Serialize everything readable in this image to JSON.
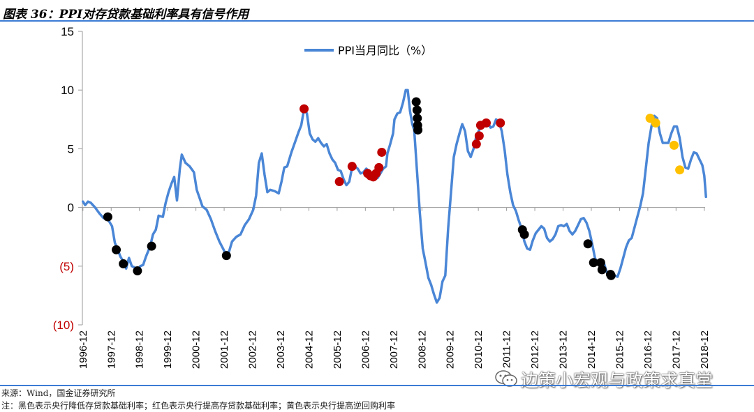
{
  "header": {
    "title": "图表 36：PPI对存贷款基础利率具有信号作用"
  },
  "footer": {
    "source": "来源：Wind，国金证券研究所",
    "note": "注：黑色表示央行降低存贷款基础利率；红色表示央行提高存贷款基础利率；黄色表示央行提高逆回购利率"
  },
  "watermark": {
    "text": "边策小宏观与政策求真堂"
  },
  "colors": {
    "line": "#4a86d6",
    "black_marker": "#000000",
    "red_marker": "#c00000",
    "yellow_marker": "#ffc000",
    "negative_label": "#c00000",
    "rule": "#3b7bd4"
  },
  "chart_data": {
    "type": "line",
    "title": "",
    "xlabel": "",
    "ylabel": "",
    "ylim": [
      -10,
      15
    ],
    "yticks": [
      15,
      10,
      5,
      0,
      -5,
      -10
    ],
    "ytick_labels": [
      "15",
      "10",
      "5",
      "0",
      "(5)",
      "(10)"
    ],
    "xlim": [
      1996.9,
      2018.95
    ],
    "xticks": [
      "1996-12",
      "1997-12",
      "1998-12",
      "1999-12",
      "2000-12",
      "2001-12",
      "2002-12",
      "2003-12",
      "2004-12",
      "2005-12",
      "2006-12",
      "2007-12",
      "2008-12",
      "2009-12",
      "2010-12",
      "2011-12",
      "2012-12",
      "2013-12",
      "2014-12",
      "2015-12",
      "2016-12",
      "2017-12",
      "2018-12"
    ],
    "legend": {
      "position": "top-center",
      "label": "PPI当月同比（%）"
    },
    "grid": false,
    "series": [
      {
        "name": "PPI当月同比（%）",
        "points": [
          [
            1996.92,
            0.5
          ],
          [
            1997.0,
            0.2
          ],
          [
            1997.1,
            0.5
          ],
          [
            1997.2,
            0.4
          ],
          [
            1997.35,
            0
          ],
          [
            1997.5,
            -0.5
          ],
          [
            1997.65,
            -0.9
          ],
          [
            1997.8,
            -1.0
          ],
          [
            1997.95,
            -1.6
          ],
          [
            1998.05,
            -3.0
          ],
          [
            1998.15,
            -3.6
          ],
          [
            1998.25,
            -4.2
          ],
          [
            1998.35,
            -4.6
          ],
          [
            1998.45,
            -5.2
          ],
          [
            1998.55,
            -4.3
          ],
          [
            1998.65,
            -5.0
          ],
          [
            1998.75,
            -5.1
          ],
          [
            1998.85,
            -5.4
          ],
          [
            1998.95,
            -5.0
          ],
          [
            1999.05,
            -4.9
          ],
          [
            1999.15,
            -4.2
          ],
          [
            1999.3,
            -3.3
          ],
          [
            1999.4,
            -2.3
          ],
          [
            1999.5,
            -1.9
          ],
          [
            1999.6,
            -0.7
          ],
          [
            1999.75,
            -0.8
          ],
          [
            1999.85,
            0.4
          ],
          [
            1999.95,
            1.3
          ],
          [
            2000.05,
            2.0
          ],
          [
            2000.15,
            2.6
          ],
          [
            2000.25,
            0.6
          ],
          [
            2000.35,
            3.3
          ],
          [
            2000.42,
            4.5
          ],
          [
            2000.55,
            3.8
          ],
          [
            2000.7,
            3.5
          ],
          [
            2000.85,
            3.0
          ],
          [
            2000.95,
            1.5
          ],
          [
            2001.05,
            0.8
          ],
          [
            2001.15,
            0.1
          ],
          [
            2001.3,
            -0.2
          ],
          [
            2001.45,
            -1.0
          ],
          [
            2001.6,
            -2.0
          ],
          [
            2001.75,
            -2.9
          ],
          [
            2001.9,
            -3.6
          ],
          [
            2002.0,
            -4.1
          ],
          [
            2002.1,
            -3.7
          ],
          [
            2002.2,
            -2.9
          ],
          [
            2002.35,
            -2.5
          ],
          [
            2002.5,
            -2.3
          ],
          [
            2002.65,
            -1.5
          ],
          [
            2002.8,
            -1.0
          ],
          [
            2002.95,
            -0.2
          ],
          [
            2003.05,
            1.0
          ],
          [
            2003.15,
            3.8
          ],
          [
            2003.25,
            4.6
          ],
          [
            2003.35,
            2.8
          ],
          [
            2003.45,
            1.3
          ],
          [
            2003.55,
            1.5
          ],
          [
            2003.7,
            1.4
          ],
          [
            2003.85,
            1.2
          ],
          [
            2003.95,
            2.2
          ],
          [
            2004.05,
            3.4
          ],
          [
            2004.15,
            3.5
          ],
          [
            2004.3,
            4.7
          ],
          [
            2004.45,
            5.7
          ],
          [
            2004.55,
            6.4
          ],
          [
            2004.65,
            7.0
          ],
          [
            2004.75,
            8.4
          ],
          [
            2004.85,
            8.0
          ],
          [
            2004.95,
            6.3
          ],
          [
            2005.05,
            5.8
          ],
          [
            2005.15,
            5.6
          ],
          [
            2005.25,
            5.9
          ],
          [
            2005.35,
            5.5
          ],
          [
            2005.45,
            5.2
          ],
          [
            2005.55,
            5.4
          ],
          [
            2005.65,
            4.6
          ],
          [
            2005.75,
            4.1
          ],
          [
            2005.85,
            3.8
          ],
          [
            2005.95,
            3.2
          ],
          [
            2006.05,
            3.1
          ],
          [
            2006.15,
            2.4
          ],
          [
            2006.25,
            1.9
          ],
          [
            2006.35,
            2.2
          ],
          [
            2006.45,
            3.4
          ],
          [
            2006.55,
            3.5
          ],
          [
            2006.65,
            3.3
          ],
          [
            2006.75,
            2.9
          ],
          [
            2006.85,
            3.0
          ],
          [
            2006.95,
            3.3
          ],
          [
            2007.05,
            3.1
          ],
          [
            2007.15,
            2.8
          ],
          [
            2007.25,
            2.7
          ],
          [
            2007.35,
            2.5
          ],
          [
            2007.45,
            2.9
          ],
          [
            2007.55,
            3.3
          ],
          [
            2007.65,
            3.5
          ],
          [
            2007.7,
            4.6
          ],
          [
            2007.8,
            5.4
          ],
          [
            2007.9,
            6.3
          ],
          [
            2007.95,
            7.5
          ],
          [
            2008.05,
            8.0
          ],
          [
            2008.15,
            8.1
          ],
          [
            2008.25,
            8.9
          ],
          [
            2008.35,
            10.0
          ],
          [
            2008.42,
            10.0
          ],
          [
            2008.5,
            8.2
          ],
          [
            2008.58,
            7.1
          ],
          [
            2008.65,
            6.6
          ],
          [
            2008.75,
            3.0
          ],
          [
            2008.85,
            -0.5
          ],
          [
            2008.95,
            -3.5
          ],
          [
            2009.05,
            -4.7
          ],
          [
            2009.15,
            -6.0
          ],
          [
            2009.25,
            -6.6
          ],
          [
            2009.35,
            -7.4
          ],
          [
            2009.45,
            -8.1
          ],
          [
            2009.55,
            -7.7
          ],
          [
            2009.65,
            -6.3
          ],
          [
            2009.75,
            -5.8
          ],
          [
            2009.85,
            -1.8
          ],
          [
            2009.95,
            1.2
          ],
          [
            2010.05,
            4.3
          ],
          [
            2010.15,
            5.4
          ],
          [
            2010.25,
            6.3
          ],
          [
            2010.35,
            7.1
          ],
          [
            2010.45,
            6.5
          ],
          [
            2010.55,
            4.8
          ],
          [
            2010.65,
            4.3
          ],
          [
            2010.75,
            5.0
          ],
          [
            2010.85,
            6.1
          ],
          [
            2010.95,
            6.6
          ],
          [
            2011.05,
            7.2
          ],
          [
            2011.15,
            7.1
          ],
          [
            2011.25,
            7.3
          ],
          [
            2011.35,
            6.8
          ],
          [
            2011.45,
            6.9
          ],
          [
            2011.55,
            7.5
          ],
          [
            2011.65,
            7.3
          ],
          [
            2011.75,
            6.5
          ],
          [
            2011.85,
            4.9
          ],
          [
            2011.95,
            2.8
          ],
          [
            2012.05,
            1.3
          ],
          [
            2012.15,
            0.2
          ],
          [
            2012.25,
            -0.3
          ],
          [
            2012.35,
            -1.1
          ],
          [
            2012.45,
            -1.8
          ],
          [
            2012.55,
            -2.9
          ],
          [
            2012.65,
            -3.5
          ],
          [
            2012.75,
            -3.6
          ],
          [
            2012.85,
            -2.8
          ],
          [
            2012.95,
            -2.2
          ],
          [
            2013.05,
            -1.9
          ],
          [
            2013.15,
            -1.6
          ],
          [
            2013.25,
            -1.8
          ],
          [
            2013.35,
            -2.6
          ],
          [
            2013.45,
            -2.9
          ],
          [
            2013.55,
            -2.7
          ],
          [
            2013.65,
            -2.3
          ],
          [
            2013.75,
            -1.6
          ],
          [
            2013.85,
            -1.5
          ],
          [
            2013.95,
            -1.6
          ],
          [
            2014.05,
            -1.4
          ],
          [
            2014.15,
            -2.0
          ],
          [
            2014.25,
            -2.3
          ],
          [
            2014.35,
            -2.0
          ],
          [
            2014.45,
            -1.5
          ],
          [
            2014.55,
            -1.0
          ],
          [
            2014.65,
            -0.9
          ],
          [
            2014.75,
            -1.3
          ],
          [
            2014.85,
            -2.0
          ],
          [
            2014.95,
            -3.1
          ],
          [
            2015.05,
            -4.3
          ],
          [
            2015.15,
            -4.8
          ],
          [
            2015.25,
            -4.6
          ],
          [
            2015.35,
            -4.6
          ],
          [
            2015.45,
            -5.4
          ],
          [
            2015.55,
            -5.9
          ],
          [
            2015.65,
            -5.7
          ],
          [
            2015.75,
            -5.8
          ],
          [
            2015.85,
            -5.9
          ],
          [
            2015.95,
            -5.2
          ],
          [
            2016.05,
            -4.3
          ],
          [
            2016.15,
            -3.4
          ],
          [
            2016.25,
            -2.8
          ],
          [
            2016.35,
            -2.6
          ],
          [
            2016.45,
            -1.7
          ],
          [
            2016.55,
            -0.8
          ],
          [
            2016.65,
            0.1
          ],
          [
            2016.75,
            1.2
          ],
          [
            2016.85,
            3.3
          ],
          [
            2016.95,
            5.5
          ],
          [
            2017.05,
            6.9
          ],
          [
            2017.15,
            7.8
          ],
          [
            2017.25,
            7.6
          ],
          [
            2017.35,
            6.3
          ],
          [
            2017.45,
            5.5
          ],
          [
            2017.55,
            5.5
          ],
          [
            2017.65,
            5.5
          ],
          [
            2017.75,
            6.3
          ],
          [
            2017.85,
            6.9
          ],
          [
            2017.95,
            6.9
          ],
          [
            2018.05,
            5.9
          ],
          [
            2018.15,
            4.3
          ],
          [
            2018.25,
            3.4
          ],
          [
            2018.35,
            3.3
          ],
          [
            2018.45,
            4.1
          ],
          [
            2018.55,
            4.7
          ],
          [
            2018.65,
            4.6
          ],
          [
            2018.75,
            4.1
          ],
          [
            2018.85,
            3.6
          ],
          [
            2018.92,
            2.7
          ],
          [
            2018.98,
            0.9
          ]
        ]
      }
    ],
    "markers": {
      "black": [
        [
          1997.8,
          -0.8
        ],
        [
          1998.1,
          -3.6
        ],
        [
          1998.35,
          -4.8
        ],
        [
          1998.85,
          -5.4
        ],
        [
          1999.35,
          -3.3
        ],
        [
          2002.0,
          -4.1
        ],
        [
          2008.72,
          9.0
        ],
        [
          2008.75,
          8.3
        ],
        [
          2008.76,
          7.6
        ],
        [
          2008.77,
          7.0
        ],
        [
          2008.78,
          6.6
        ],
        [
          2012.48,
          -1.9
        ],
        [
          2012.55,
          -2.3
        ],
        [
          2014.8,
          -3.1
        ],
        [
          2015.0,
          -4.7
        ],
        [
          2015.25,
          -4.7
        ],
        [
          2015.3,
          -5.3
        ],
        [
          2015.6,
          -5.7
        ],
        [
          2015.62,
          -5.8
        ]
      ],
      "red": [
        [
          2004.75,
          8.4
        ],
        [
          2006.0,
          2.2
        ],
        [
          2006.45,
          3.5
        ],
        [
          2007.0,
          2.9
        ],
        [
          2007.1,
          2.7
        ],
        [
          2007.2,
          2.6
        ],
        [
          2007.3,
          2.9
        ],
        [
          2007.4,
          3.4
        ],
        [
          2007.5,
          4.7
        ],
        [
          2010.85,
          5.4
        ],
        [
          2010.95,
          6.1
        ],
        [
          2011.0,
          7.0
        ],
        [
          2011.2,
          7.2
        ],
        [
          2011.7,
          7.2
        ]
      ],
      "yellow": [
        [
          2017.0,
          7.6
        ],
        [
          2017.2,
          7.2
        ],
        [
          2017.85,
          5.3
        ],
        [
          2018.05,
          3.2
        ]
      ]
    }
  }
}
